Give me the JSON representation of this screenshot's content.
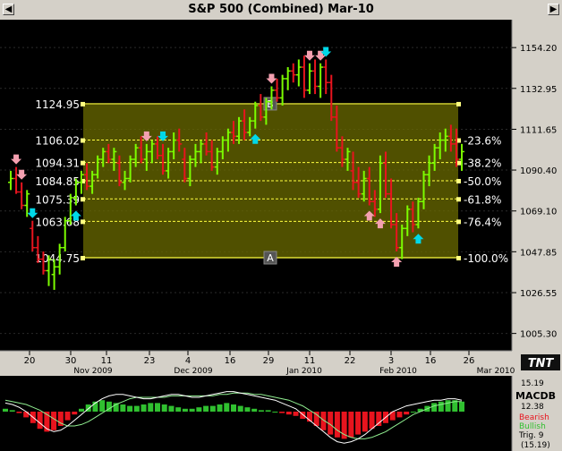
{
  "window": {
    "title": "S&P 500 (Combined) Mar-10",
    "left_button": "◀",
    "right_button": "▶"
  },
  "colors": {
    "background": "#000000",
    "up_bar": "#7CFC00",
    "down_bar": "#E8141E",
    "fib_zone": "#6b6b00",
    "fib_line": "#ffff40",
    "arrow_up": "#00d8e8",
    "arrow_pink": "#f4a0b0",
    "macd_line": "#ffffff",
    "signal_line": "#90ee90"
  },
  "chart_data": {
    "type": "candlestick",
    "title": "S&P 500 (Combined) Mar-10",
    "y_axis_ticks": [
      "1154.20",
      "1132.95",
      "1111.65",
      "1090.40",
      "1069.10",
      "1047.85",
      "1026.55",
      "1005.30"
    ],
    "ylim": [
      1000,
      1165
    ],
    "x_day_ticks": [
      "20",
      "30",
      "11",
      "23",
      "4",
      "16",
      "29",
      "11",
      "22",
      "3",
      "16",
      "26"
    ],
    "x_month_labels": [
      "Nov 2009",
      "Dec 2009",
      "Jan 2010",
      "Feb 2010",
      "Mar 2010"
    ],
    "fib_levels": [
      {
        "price_label": "1124.95",
        "pct_label": "",
        "value": 1124.95
      },
      {
        "price_label": "1106.02",
        "pct_label": "-23.6%",
        "value": 1106.02
      },
      {
        "price_label": "1094.31",
        "pct_label": "-38.2%",
        "value": 1094.31
      },
      {
        "price_label": "1084.85",
        "pct_label": "-50.0%",
        "value": 1084.85
      },
      {
        "price_label": "1075.39",
        "pct_label": "-61.8%",
        "value": 1075.39
      },
      {
        "price_label": "1063.68",
        "pct_label": "-76.4%",
        "value": 1063.68
      },
      {
        "price_label": "1044.75",
        "pct_label": "-100.0%",
        "value": 1044.75
      }
    ],
    "point_labels": [
      "B",
      "A"
    ],
    "bars": [
      {
        "o": 1084,
        "h": 1090,
        "l": 1080,
        "c": 1086
      },
      {
        "o": 1086,
        "h": 1092,
        "l": 1078,
        "c": 1079
      },
      {
        "o": 1079,
        "h": 1084,
        "l": 1070,
        "c": 1072
      },
      {
        "o": 1072,
        "h": 1080,
        "l": 1066,
        "c": 1078
      },
      {
        "o": 1060,
        "h": 1064,
        "l": 1048,
        "c": 1050
      },
      {
        "o": 1050,
        "h": 1056,
        "l": 1042,
        "c": 1044
      },
      {
        "o": 1044,
        "h": 1048,
        "l": 1036,
        "c": 1038
      },
      {
        "o": 1038,
        "h": 1046,
        "l": 1030,
        "c": 1044
      },
      {
        "o": 1036,
        "h": 1044,
        "l": 1028,
        "c": 1040
      },
      {
        "o": 1040,
        "h": 1052,
        "l": 1036,
        "c": 1050
      },
      {
        "o": 1050,
        "h": 1066,
        "l": 1048,
        "c": 1064
      },
      {
        "o": 1064,
        "h": 1078,
        "l": 1062,
        "c": 1076
      },
      {
        "o": 1076,
        "h": 1086,
        "l": 1072,
        "c": 1084
      },
      {
        "o": 1084,
        "h": 1090,
        "l": 1078,
        "c": 1088
      },
      {
        "o": 1088,
        "h": 1094,
        "l": 1080,
        "c": 1082
      },
      {
        "o": 1082,
        "h": 1090,
        "l": 1078,
        "c": 1088
      },
      {
        "o": 1088,
        "h": 1098,
        "l": 1086,
        "c": 1096
      },
      {
        "o": 1096,
        "h": 1102,
        "l": 1092,
        "c": 1100
      },
      {
        "o": 1100,
        "h": 1104,
        "l": 1094,
        "c": 1096
      },
      {
        "o": 1096,
        "h": 1102,
        "l": 1090,
        "c": 1100
      },
      {
        "o": 1094,
        "h": 1098,
        "l": 1082,
        "c": 1084
      },
      {
        "o": 1084,
        "h": 1090,
        "l": 1080,
        "c": 1086
      },
      {
        "o": 1086,
        "h": 1098,
        "l": 1084,
        "c": 1096
      },
      {
        "o": 1096,
        "h": 1104,
        "l": 1092,
        "c": 1102
      },
      {
        "o": 1102,
        "h": 1108,
        "l": 1094,
        "c": 1096
      },
      {
        "o": 1096,
        "h": 1104,
        "l": 1090,
        "c": 1100
      },
      {
        "o": 1100,
        "h": 1106,
        "l": 1094,
        "c": 1104
      },
      {
        "o": 1104,
        "h": 1108,
        "l": 1096,
        "c": 1098
      },
      {
        "o": 1098,
        "h": 1104,
        "l": 1088,
        "c": 1090
      },
      {
        "o": 1090,
        "h": 1102,
        "l": 1086,
        "c": 1100
      },
      {
        "o": 1100,
        "h": 1110,
        "l": 1096,
        "c": 1106
      },
      {
        "o": 1106,
        "h": 1112,
        "l": 1100,
        "c": 1104
      },
      {
        "o": 1096,
        "h": 1102,
        "l": 1084,
        "c": 1086
      },
      {
        "o": 1086,
        "h": 1098,
        "l": 1082,
        "c": 1096
      },
      {
        "o": 1096,
        "h": 1104,
        "l": 1092,
        "c": 1100
      },
      {
        "o": 1100,
        "h": 1106,
        "l": 1094,
        "c": 1104
      },
      {
        "o": 1104,
        "h": 1110,
        "l": 1098,
        "c": 1100
      },
      {
        "o": 1100,
        "h": 1106,
        "l": 1090,
        "c": 1092
      },
      {
        "o": 1092,
        "h": 1102,
        "l": 1088,
        "c": 1100
      },
      {
        "o": 1100,
        "h": 1108,
        "l": 1096,
        "c": 1106
      },
      {
        "o": 1106,
        "h": 1112,
        "l": 1100,
        "c": 1110
      },
      {
        "o": 1110,
        "h": 1116,
        "l": 1104,
        "c": 1108
      },
      {
        "o": 1108,
        "h": 1118,
        "l": 1104,
        "c": 1116
      },
      {
        "o": 1116,
        "h": 1122,
        "l": 1106,
        "c": 1110
      },
      {
        "o": 1110,
        "h": 1118,
        "l": 1108,
        "c": 1116
      },
      {
        "o": 1116,
        "h": 1126,
        "l": 1112,
        "c": 1124
      },
      {
        "o": 1124,
        "h": 1130,
        "l": 1116,
        "c": 1118
      },
      {
        "o": 1118,
        "h": 1128,
        "l": 1114,
        "c": 1126
      },
      {
        "o": 1126,
        "h": 1134,
        "l": 1122,
        "c": 1132
      },
      {
        "o": 1132,
        "h": 1138,
        "l": 1126,
        "c": 1128
      },
      {
        "o": 1128,
        "h": 1140,
        "l": 1124,
        "c": 1138
      },
      {
        "o": 1138,
        "h": 1144,
        "l": 1132,
        "c": 1142
      },
      {
        "o": 1142,
        "h": 1146,
        "l": 1136,
        "c": 1140
      },
      {
        "o": 1140,
        "h": 1148,
        "l": 1134,
        "c": 1144
      },
      {
        "o": 1144,
        "h": 1150,
        "l": 1128,
        "c": 1132
      },
      {
        "o": 1132,
        "h": 1146,
        "l": 1130,
        "c": 1142
      },
      {
        "o": 1142,
        "h": 1148,
        "l": 1130,
        "c": 1134
      },
      {
        "o": 1134,
        "h": 1146,
        "l": 1128,
        "c": 1144
      },
      {
        "o": 1144,
        "h": 1148,
        "l": 1130,
        "c": 1136
      },
      {
        "o": 1136,
        "h": 1140,
        "l": 1116,
        "c": 1118
      },
      {
        "o": 1118,
        "h": 1124,
        "l": 1100,
        "c": 1102
      },
      {
        "o": 1102,
        "h": 1108,
        "l": 1092,
        "c": 1096
      },
      {
        "o": 1096,
        "h": 1102,
        "l": 1090,
        "c": 1100
      },
      {
        "o": 1090,
        "h": 1100,
        "l": 1080,
        "c": 1084
      },
      {
        "o": 1084,
        "h": 1092,
        "l": 1076,
        "c": 1078
      },
      {
        "o": 1078,
        "h": 1090,
        "l": 1074,
        "c": 1086
      },
      {
        "o": 1086,
        "h": 1092,
        "l": 1072,
        "c": 1074
      },
      {
        "o": 1074,
        "h": 1080,
        "l": 1066,
        "c": 1070
      },
      {
        "o": 1070,
        "h": 1098,
        "l": 1068,
        "c": 1094
      },
      {
        "o": 1094,
        "h": 1100,
        "l": 1076,
        "c": 1078
      },
      {
        "o": 1078,
        "h": 1086,
        "l": 1060,
        "c": 1062
      },
      {
        "o": 1062,
        "h": 1068,
        "l": 1048,
        "c": 1050
      },
      {
        "o": 1050,
        "h": 1062,
        "l": 1044,
        "c": 1060
      },
      {
        "o": 1060,
        "h": 1072,
        "l": 1056,
        "c": 1070
      },
      {
        "o": 1070,
        "h": 1074,
        "l": 1058,
        "c": 1062
      },
      {
        "o": 1062,
        "h": 1076,
        "l": 1060,
        "c": 1074
      },
      {
        "o": 1074,
        "h": 1090,
        "l": 1070,
        "c": 1088
      },
      {
        "o": 1088,
        "h": 1098,
        "l": 1082,
        "c": 1094
      },
      {
        "o": 1094,
        "h": 1104,
        "l": 1090,
        "c": 1102
      },
      {
        "o": 1102,
        "h": 1110,
        "l": 1096,
        "c": 1106
      },
      {
        "o": 1106,
        "h": 1112,
        "l": 1100,
        "c": 1108
      },
      {
        "o": 1108,
        "h": 1114,
        "l": 1100,
        "c": 1104
      },
      {
        "o": 1104,
        "h": 1112,
        "l": 1092,
        "c": 1096
      },
      {
        "o": 1096,
        "h": 1104,
        "l": 1090,
        "c": 1100
      }
    ]
  },
  "macd": {
    "label": "MACDB",
    "value_top": "15.19",
    "value_second": "12.38",
    "legend_bearish": "Bearish",
    "legend_bullish": "Bullish",
    "legend_trig": "Trig. 9",
    "value_bottom": "(15.19)",
    "histogram": [
      2,
      1,
      -1,
      -4,
      -8,
      -12,
      -14,
      -13,
      -10,
      -6,
      -2,
      2,
      5,
      7,
      8,
      7,
      6,
      5,
      4,
      4,
      5,
      6,
      6,
      5,
      4,
      3,
      2,
      2,
      3,
      4,
      4,
      5,
      6,
      5,
      4,
      3,
      2,
      1,
      1,
      0,
      -1,
      -2,
      -3,
      -5,
      -7,
      -10,
      -13,
      -16,
      -18,
      -19,
      -18,
      -16,
      -14,
      -12,
      -10,
      -8,
      -6,
      -4,
      -2,
      0,
      2,
      4,
      6,
      7,
      8,
      8,
      7
    ],
    "macd_line": [
      6,
      5,
      3,
      0,
      -4,
      -8,
      -12,
      -14,
      -13,
      -10,
      -6,
      -2,
      2,
      6,
      9,
      11,
      12,
      12,
      11,
      10,
      9,
      9,
      10,
      11,
      12,
      12,
      11,
      10,
      10,
      11,
      12,
      13,
      14,
      14,
      13,
      12,
      11,
      10,
      9,
      8,
      6,
      4,
      2,
      -2,
      -6,
      -10,
      -14,
      -18,
      -21,
      -22,
      -21,
      -19,
      -16,
      -12,
      -8,
      -4,
      0,
      2,
      4,
      5,
      6,
      7,
      8,
      8,
      9,
      9,
      8
    ],
    "signal_line": [
      8,
      7,
      6,
      5,
      3,
      1,
      -2,
      -5,
      -8,
      -10,
      -10,
      -9,
      -7,
      -4,
      -1,
      2,
      5,
      7,
      9,
      10,
      10,
      10,
      10,
      10,
      11,
      11,
      11,
      11,
      11,
      11,
      11,
      12,
      12,
      13,
      13,
      13,
      12,
      12,
      11,
      10,
      9,
      8,
      6,
      4,
      1,
      -2,
      -6,
      -9,
      -13,
      -16,
      -18,
      -19,
      -19,
      -18,
      -16,
      -14,
      -11,
      -8,
      -5,
      -2,
      0,
      2,
      4,
      5,
      6,
      7,
      7
    ]
  }
}
